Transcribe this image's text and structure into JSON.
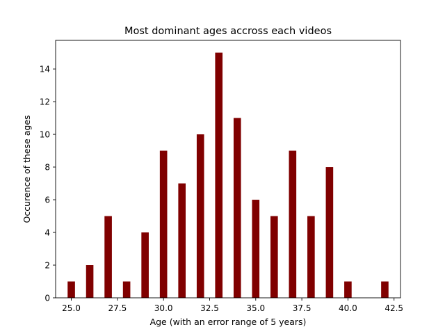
{
  "chart_data": {
    "type": "bar",
    "title": "Most dominant ages accross each videos",
    "xlabel": "Age (with an error range of 5 years)",
    "ylabel": "Occurence of these ages",
    "x": [
      25,
      26,
      27,
      28,
      29,
      30,
      31,
      32,
      33,
      34,
      35,
      36,
      37,
      38,
      39,
      40,
      42
    ],
    "values": [
      1,
      2,
      5,
      1,
      4,
      9,
      7,
      10,
      15,
      11,
      6,
      5,
      9,
      5,
      8,
      1,
      1
    ],
    "bar_width": 0.4,
    "xlim": [
      24.15,
      42.85
    ],
    "ylim": [
      0,
      15.75
    ],
    "xticks": [
      25.0,
      27.5,
      30.0,
      32.5,
      35.0,
      37.5,
      40.0,
      42.5
    ],
    "xtick_labels": [
      "25.0",
      "27.5",
      "30.0",
      "32.5",
      "35.0",
      "37.5",
      "40.0",
      "42.5"
    ],
    "yticks": [
      0,
      2,
      4,
      6,
      8,
      10,
      12,
      14
    ],
    "ytick_labels": [
      "0",
      "2",
      "4",
      "6",
      "8",
      "10",
      "12",
      "14"
    ],
    "bar_color": "#800000",
    "grid": false,
    "legend": "none"
  }
}
